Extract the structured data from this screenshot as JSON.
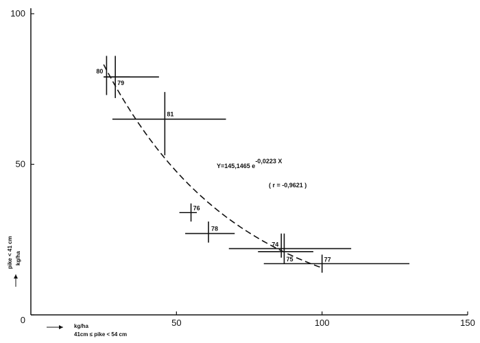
{
  "chart_data": {
    "type": "scatter",
    "title": "",
    "xlim": [
      0,
      150
    ],
    "ylim": [
      0,
      100
    ],
    "x_ticks": [
      "50",
      "100",
      "150"
    ],
    "y_ticks": [
      "0",
      "50",
      "100"
    ],
    "xlabel_lines": [
      "kg/ha",
      "41cm ≤ pike < 54 cm"
    ],
    "ylabel_lines": [
      "pike < 41 cm",
      "kg/ha"
    ],
    "points": [
      {
        "label": "80",
        "x": 26,
        "y": 79,
        "x_range": [
          25,
          34
        ],
        "y_range": [
          73,
          86
        ]
      },
      {
        "label": "79",
        "x": 29,
        "y": 79,
        "x_range": [
          25,
          44
        ],
        "y_range": [
          72,
          86
        ]
      },
      {
        "label": "81",
        "x": 46,
        "y": 65,
        "x_range": [
          28,
          67
        ],
        "y_range": [
          53,
          74
        ]
      },
      {
        "label": "76",
        "x": 55,
        "y": 34,
        "x_range": [
          51,
          57
        ],
        "y_range": [
          31,
          37
        ]
      },
      {
        "label": "78",
        "x": 61,
        "y": 27,
        "x_range": [
          53,
          70
        ],
        "y_range": [
          24,
          31
        ]
      },
      {
        "label": "74",
        "x": 86,
        "y": 22,
        "x_range": [
          68,
          110
        ],
        "y_range": [
          19,
          27
        ]
      },
      {
        "label": "75",
        "x": 87,
        "y": 21,
        "x_range": [
          78,
          97
        ],
        "y_range": [
          17,
          27
        ]
      },
      {
        "label": "77",
        "x": 100,
        "y": 17,
        "x_range": [
          80,
          130
        ],
        "y_range": [
          14,
          20
        ]
      }
    ],
    "fit": {
      "a": 145.1465,
      "b": -0.0223,
      "x_range": [
        25,
        100
      ],
      "equation_prefix": "Y=145,1465 e",
      "equation_exponent": "-0,0223 X",
      "r_text": "( r = -0,9621 )"
    }
  }
}
